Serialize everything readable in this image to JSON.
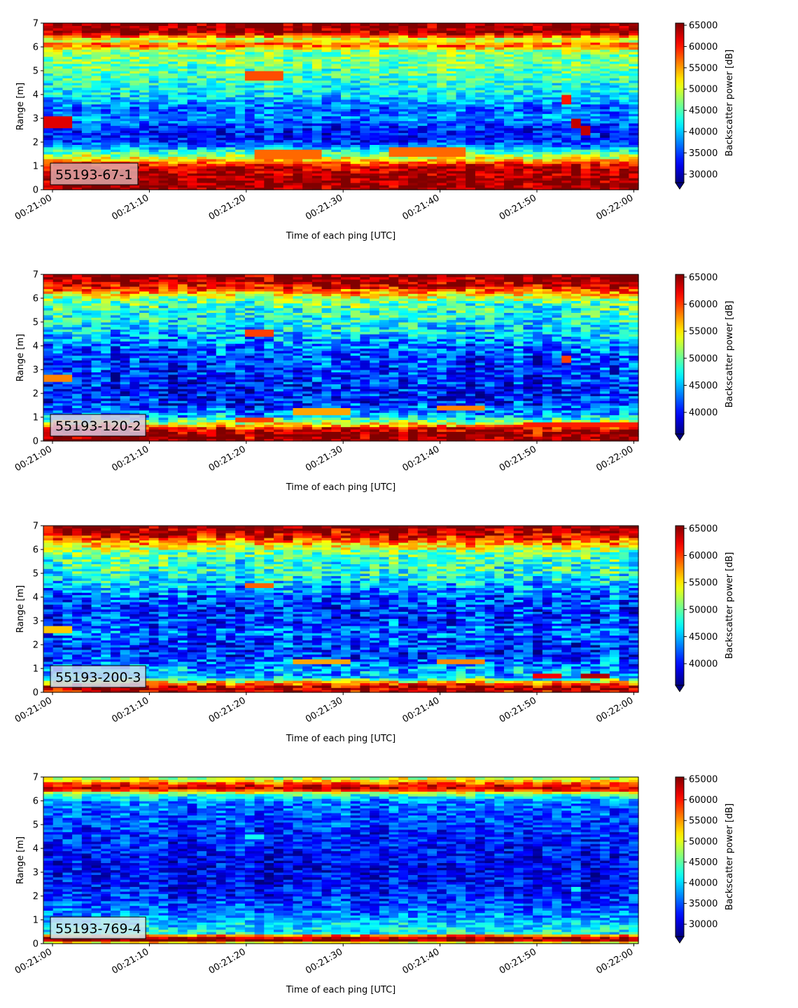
{
  "chart_data": [
    {
      "type": "heatmap",
      "label": "55193-67-1",
      "xlabel": "Time of each ping [UTC]",
      "ylabel": "Range [m]",
      "xticks": [
        "00:21:00",
        "00:21:10",
        "00:21:20",
        "00:21:30",
        "00:21:40",
        "00:21:50",
        "00:22:00"
      ],
      "yticks": [
        "0",
        "1",
        "2",
        "3",
        "4",
        "5",
        "6",
        "7"
      ],
      "ylim": [
        0,
        7
      ],
      "colorbar_label": "Backscatter power [dB]",
      "colorbar_ticks": [
        "30000",
        "35000",
        "40000",
        "45000",
        "50000",
        "55000",
        "60000",
        "65000"
      ],
      "clim": [
        28000,
        65500
      ],
      "colormap": "jet",
      "label_box_color": "#e0a8a8",
      "profile": {
        "range_m": [
          0,
          0.3,
          0.6,
          1.0,
          1.3,
          1.6,
          1.9,
          2.2,
          2.6,
          3.0,
          3.4,
          3.8,
          4.2,
          4.6,
          5.0,
          5.4,
          5.8,
          6.1,
          6.3,
          6.6,
          7.0
        ],
        "power": [
          65000,
          65000,
          64000,
          62500,
          52000,
          44000,
          36000,
          33000,
          34000,
          38000,
          36000,
          40000,
          42000,
          44000,
          45000,
          46000,
          47000,
          58000,
          48000,
          64000,
          65000
        ]
      },
      "features": [
        {
          "t0": 0,
          "t1": 2,
          "r0": 2.6,
          "r1": 3.1,
          "value": 62000
        },
        {
          "t0": 20,
          "t1": 24,
          "r0": 4.6,
          "r1": 5.0,
          "value": 58000
        },
        {
          "t0": 21,
          "t1": 28,
          "r0": 1.35,
          "r1": 1.7,
          "value": 57000
        },
        {
          "t0": 34,
          "t1": 42,
          "r0": 1.4,
          "r1": 1.8,
          "value": 57000
        },
        {
          "t0": 52,
          "t1": 53,
          "r0": 3.6,
          "r1": 4.0,
          "value": 60000
        },
        {
          "t0": 53,
          "t1": 54,
          "r0": 2.6,
          "r1": 3.0,
          "value": 63000
        },
        {
          "t0": 54,
          "t1": 55,
          "r0": 2.3,
          "r1": 2.7,
          "value": 63000
        }
      ]
    },
    {
      "type": "heatmap",
      "label": "55193-120-2",
      "xlabel": "Time of each ping [UTC]",
      "ylabel": "Range [m]",
      "xticks": [
        "00:21:00",
        "00:21:10",
        "00:21:20",
        "00:21:30",
        "00:21:40",
        "00:21:50",
        "00:22:00"
      ],
      "yticks": [
        "0",
        "1",
        "2",
        "3",
        "4",
        "5",
        "6",
        "7"
      ],
      "ylim": [
        0,
        7
      ],
      "colorbar_label": "Backscatter power [dB]",
      "colorbar_ticks": [
        "40000",
        "45000",
        "50000",
        "55000",
        "60000",
        "65000"
      ],
      "clim": [
        36000,
        65500
      ],
      "colormap": "jet",
      "label_box_color": "#d9c8e0",
      "profile": {
        "range_m": [
          0,
          0.3,
          0.5,
          0.8,
          1.1,
          1.5,
          2.0,
          2.5,
          3.0,
          3.5,
          4.0,
          4.5,
          5.0,
          5.5,
          5.9,
          6.2,
          6.5,
          6.8,
          7.0
        ],
        "power": [
          65000,
          65000,
          63000,
          52000,
          44000,
          41000,
          40000,
          40500,
          41000,
          41500,
          43000,
          45500,
          47000,
          48000,
          50000,
          56000,
          62000,
          65000,
          65000
        ]
      },
      "features": [
        {
          "t0": 0,
          "t1": 2,
          "r0": 2.5,
          "r1": 2.8,
          "value": 58000
        },
        {
          "t0": 20,
          "t1": 23,
          "r0": 4.4,
          "r1": 4.7,
          "value": 60000
        },
        {
          "t0": 19,
          "t1": 23,
          "r0": 0.8,
          "r1": 1.0,
          "value": 60000
        },
        {
          "t0": 25,
          "t1": 30,
          "r0": 1.15,
          "r1": 1.4,
          "value": 57000
        },
        {
          "t0": 39,
          "t1": 44,
          "r0": 1.3,
          "r1": 1.5,
          "value": 58000
        },
        {
          "t0": 52,
          "t1": 53,
          "r0": 3.3,
          "r1": 3.6,
          "value": 60000
        },
        {
          "t0": 48,
          "t1": 61,
          "r0": 0.65,
          "r1": 0.8,
          "value": 61000
        }
      ]
    },
    {
      "type": "heatmap",
      "label": "55193-200-3",
      "xlabel": "Time of each ping [UTC]",
      "ylabel": "Range [m]",
      "xticks": [
        "00:21:00",
        "00:21:10",
        "00:21:20",
        "00:21:30",
        "00:21:40",
        "00:21:50",
        "00:22:00"
      ],
      "yticks": [
        "0",
        "1",
        "2",
        "3",
        "4",
        "5",
        "6",
        "7"
      ],
      "ylim": [
        0,
        7
      ],
      "colorbar_label": "Backscatter power [dB]",
      "colorbar_ticks": [
        "40000",
        "45000",
        "50000",
        "55000",
        "60000",
        "65000"
      ],
      "clim": [
        36000,
        65500
      ],
      "colormap": "jet",
      "label_box_color": "#c8d8f0",
      "profile": {
        "range_m": [
          0,
          0.2,
          0.4,
          0.6,
          1.0,
          1.5,
          2.0,
          2.5,
          3.0,
          3.5,
          4.0,
          4.5,
          5.0,
          5.5,
          5.9,
          6.2,
          6.5,
          6.8,
          7.0
        ],
        "power": [
          62000,
          65000,
          58000,
          46000,
          44000,
          41000,
          41000,
          43000,
          41000,
          41000,
          42000,
          45000,
          48000,
          48500,
          50000,
          56000,
          61000,
          65000,
          65000
        ]
      },
      "features": [
        {
          "t0": 0,
          "t1": 2,
          "r0": 2.5,
          "r1": 2.8,
          "value": 56000
        },
        {
          "t0": 20,
          "t1": 23,
          "r0": 4.4,
          "r1": 4.6,
          "value": 59000
        },
        {
          "t0": 25,
          "t1": 30,
          "r0": 1.2,
          "r1": 1.4,
          "value": 57000
        },
        {
          "t0": 39,
          "t1": 44,
          "r0": 1.25,
          "r1": 1.45,
          "value": 58000
        },
        {
          "t0": 49,
          "t1": 52,
          "r0": 0.6,
          "r1": 0.8,
          "value": 62000
        },
        {
          "t0": 54,
          "t1": 57,
          "r0": 0.6,
          "r1": 0.8,
          "value": 64000
        }
      ]
    },
    {
      "type": "heatmap",
      "label": "55193-769-4",
      "xlabel": "Time of each ping [UTC]",
      "ylabel": "Range [m]",
      "xticks": [
        "00:21:00",
        "00:21:10",
        "00:21:20",
        "00:21:30",
        "00:21:40",
        "00:21:50",
        "00:22:00"
      ],
      "yticks": [
        "0",
        "1",
        "2",
        "3",
        "4",
        "5",
        "6",
        "7"
      ],
      "ylim": [
        0,
        7
      ],
      "colorbar_label": "Backscatter power [dB]",
      "colorbar_ticks": [
        "30000",
        "35000",
        "40000",
        "45000",
        "50000",
        "55000",
        "60000",
        "65000"
      ],
      "clim": [
        27000,
        65500
      ],
      "colormap": "jet",
      "label_box_color": "#d0e8f0",
      "profile": {
        "range_m": [
          0,
          0.15,
          0.3,
          0.45,
          0.8,
          1.2,
          1.6,
          2.0,
          2.5,
          3.0,
          3.5,
          4.0,
          4.5,
          5.0,
          5.5,
          6.0,
          6.3,
          6.5,
          6.7,
          6.9,
          7.0
        ],
        "power": [
          45000,
          65000,
          63000,
          42000,
          40000,
          37000,
          35000,
          33000,
          32000,
          31500,
          31500,
          32500,
          33000,
          34000,
          35000,
          37000,
          45000,
          63000,
          60000,
          50000,
          48000
        ]
      },
      "features": [
        {
          "t0": 20,
          "t1": 22,
          "r0": 4.4,
          "r1": 4.6,
          "value": 42000
        },
        {
          "t0": 53,
          "t1": 54,
          "r0": 2.2,
          "r1": 2.4,
          "value": 42000
        }
      ]
    }
  ]
}
